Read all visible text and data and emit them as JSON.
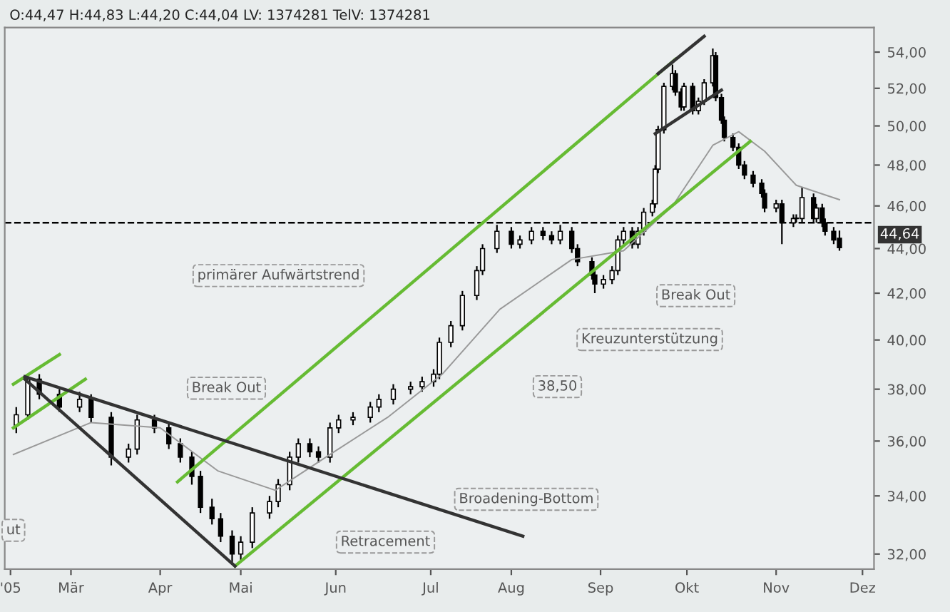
{
  "chart_data": {
    "type": "candlestick",
    "title": "O:44,47 H:44,83 L:44,20 C:44,04 LV: 1374281 TelV: 1374281",
    "log": "y",
    "grid": false,
    "x": [
      "2005-02-10",
      "2005-02-14",
      "2005-02-18",
      "2005-02-25",
      "2005-03-04",
      "2005-03-08",
      "2005-03-15",
      "2005-03-21",
      "2005-03-24",
      "2005-03-30",
      "2005-04-04",
      "2005-04-08",
      "2005-04-12",
      "2005-04-15",
      "2005-04-19",
      "2005-04-22",
      "2005-04-26",
      "2005-04-29",
      "2005-05-03",
      "2005-05-09",
      "2005-05-12",
      "2005-05-16",
      "2005-05-19",
      "2005-05-23",
      "2005-05-26",
      "2005-05-30",
      "2005-06-02",
      "2005-06-07",
      "2005-06-13",
      "2005-06-16",
      "2005-06-21",
      "2005-06-27",
      "2005-07-01",
      "2005-07-05",
      "2005-07-07",
      "2005-07-11",
      "2005-07-15",
      "2005-07-20",
      "2005-07-22",
      "2005-07-27",
      "2005-08-01",
      "2005-08-04",
      "2005-08-08",
      "2005-08-12",
      "2005-08-15",
      "2005-08-18",
      "2005-08-22",
      "2005-08-24",
      "2005-08-29",
      "2005-08-30",
      "2005-09-02",
      "2005-09-05",
      "2005-09-07",
      "2005-09-09",
      "2005-09-12",
      "2005-09-14",
      "2005-09-16",
      "2005-09-19",
      "2005-09-20",
      "2005-09-21",
      "2005-09-23",
      "2005-09-26",
      "2005-09-27",
      "2005-09-29",
      "2005-09-30",
      "2005-10-03",
      "2005-10-05",
      "2005-10-07",
      "2005-10-10",
      "2005-10-11",
      "2005-10-13",
      "2005-10-14",
      "2005-10-17",
      "2005-10-19",
      "2005-10-21",
      "2005-10-24",
      "2005-10-27",
      "2005-10-28",
      "2005-11-01",
      "2005-11-03",
      "2005-11-07",
      "2005-11-08",
      "2005-11-10",
      "2005-11-14",
      "2005-11-15",
      "2005-11-17",
      "2005-11-18",
      "2005-11-21",
      "2005-11-23"
    ],
    "ohlc": [
      [
        36.6,
        37.3,
        36.3,
        37.0
      ],
      [
        37.0,
        38.6,
        36.8,
        38.4
      ],
      [
        38.4,
        38.6,
        37.6,
        37.8
      ],
      [
        37.8,
        38.0,
        37.1,
        37.3
      ],
      [
        37.3,
        37.9,
        37.1,
        37.6
      ],
      [
        37.6,
        37.8,
        36.7,
        36.9
      ],
      [
        36.9,
        37.1,
        35.1,
        35.4
      ],
      [
        35.4,
        35.9,
        35.2,
        35.7
      ],
      [
        35.7,
        37.0,
        35.5,
        36.8
      ],
      [
        36.8,
        37.0,
        36.3,
        36.5
      ],
      [
        36.5,
        36.7,
        35.7,
        35.9
      ],
      [
        35.9,
        36.1,
        35.2,
        35.4
      ],
      [
        35.4,
        35.6,
        34.4,
        34.7
      ],
      [
        34.7,
        34.9,
        33.4,
        33.6
      ],
      [
        33.6,
        33.9,
        33.0,
        33.2
      ],
      [
        33.2,
        33.4,
        32.4,
        32.6
      ],
      [
        32.6,
        32.8,
        31.7,
        32.0
      ],
      [
        32.0,
        32.6,
        31.8,
        32.4
      ],
      [
        32.4,
        33.6,
        32.2,
        33.4
      ],
      [
        33.4,
        34.0,
        33.2,
        33.8
      ],
      [
        33.8,
        34.6,
        33.6,
        34.4
      ],
      [
        34.4,
        35.6,
        34.2,
        35.4
      ],
      [
        35.4,
        36.1,
        35.2,
        35.9
      ],
      [
        35.9,
        36.1,
        35.4,
        35.6
      ],
      [
        35.6,
        35.8,
        35.2,
        35.4
      ],
      [
        35.4,
        36.7,
        35.2,
        36.5
      ],
      [
        36.5,
        37.0,
        36.3,
        36.8
      ],
      [
        36.8,
        37.1,
        36.6,
        36.9
      ],
      [
        36.9,
        37.5,
        36.7,
        37.3
      ],
      [
        37.3,
        37.8,
        37.1,
        37.6
      ],
      [
        37.6,
        38.2,
        37.4,
        38.0
      ],
      [
        38.0,
        38.3,
        37.8,
        38.1
      ],
      [
        38.1,
        38.5,
        37.9,
        38.3
      ],
      [
        38.3,
        38.8,
        38.1,
        38.6
      ],
      [
        38.6,
        40.1,
        38.4,
        39.9
      ],
      [
        39.9,
        40.8,
        39.7,
        40.6
      ],
      [
        40.6,
        42.1,
        40.4,
        41.9
      ],
      [
        41.9,
        43.2,
        41.7,
        43.0
      ],
      [
        43.0,
        44.2,
        42.8,
        44.0
      ],
      [
        44.0,
        45.1,
        43.8,
        44.8
      ],
      [
        44.8,
        45.0,
        44.0,
        44.2
      ],
      [
        44.2,
        44.6,
        44.0,
        44.4
      ],
      [
        44.4,
        45.0,
        44.2,
        44.8
      ],
      [
        44.8,
        45.0,
        44.4,
        44.6
      ],
      [
        44.6,
        44.8,
        44.2,
        44.4
      ],
      [
        44.4,
        45.1,
        44.2,
        44.8
      ],
      [
        44.8,
        45.0,
        43.8,
        44.0
      ],
      [
        44.0,
        44.2,
        43.2,
        43.4
      ],
      [
        43.4,
        43.6,
        42.6,
        42.8
      ],
      [
        42.8,
        43.0,
        42.0,
        42.4
      ],
      [
        42.4,
        42.8,
        42.2,
        42.6
      ],
      [
        42.6,
        43.2,
        42.4,
        43.0
      ],
      [
        43.0,
        44.6,
        42.8,
        44.4
      ],
      [
        44.4,
        45.0,
        44.2,
        44.8
      ],
      [
        44.8,
        45.0,
        44.0,
        44.2
      ],
      [
        44.2,
        45.0,
        44.0,
        44.8
      ],
      [
        44.8,
        45.9,
        44.6,
        45.7
      ],
      [
        45.7,
        46.3,
        45.5,
        46.1
      ],
      [
        46.1,
        48.0,
        45.9,
        47.8
      ],
      [
        47.8,
        50.0,
        47.6,
        49.8
      ],
      [
        49.8,
        52.3,
        49.6,
        52.1
      ],
      [
        52.1,
        53.3,
        51.9,
        52.8
      ],
      [
        52.8,
        53.0,
        51.6,
        51.8
      ],
      [
        51.8,
        52.0,
        50.8,
        51.0
      ],
      [
        51.0,
        52.3,
        50.8,
        52.1
      ],
      [
        52.1,
        52.3,
        50.6,
        50.8
      ],
      [
        50.8,
        51.5,
        50.6,
        51.3
      ],
      [
        51.3,
        52.5,
        51.1,
        52.3
      ],
      [
        52.3,
        54.2,
        52.1,
        53.8
      ],
      [
        53.8,
        54.0,
        51.3,
        51.5
      ],
      [
        51.5,
        51.7,
        50.1,
        50.3
      ],
      [
        50.3,
        50.5,
        49.2,
        49.4
      ],
      [
        49.4,
        49.6,
        48.7,
        48.9
      ],
      [
        48.9,
        49.1,
        47.8,
        48.0
      ],
      [
        48.0,
        48.2,
        47.3,
        47.5
      ],
      [
        47.5,
        47.7,
        46.9,
        47.1
      ],
      [
        47.1,
        47.3,
        46.4,
        46.6
      ],
      [
        46.6,
        46.8,
        45.7,
        45.9
      ],
      [
        45.9,
        46.3,
        45.7,
        46.1
      ],
      [
        46.1,
        46.3,
        44.2,
        45.2
      ],
      [
        45.2,
        45.6,
        45.0,
        45.4
      ],
      [
        45.4,
        45.6,
        45.2,
        45.4
      ],
      [
        45.4,
        46.9,
        45.2,
        46.4
      ],
      [
        46.4,
        46.6,
        45.2,
        45.4
      ],
      [
        45.4,
        46.1,
        45.2,
        45.9
      ],
      [
        45.9,
        46.1,
        45.0,
        45.2
      ],
      [
        45.2,
        45.4,
        44.6,
        44.8
      ],
      [
        44.8,
        45.0,
        44.2,
        44.4
      ],
      [
        44.47,
        44.83,
        43.9,
        44.04
      ]
    ],
    "series": [
      {
        "type": "line",
        "color": "#999999",
        "x": [
          "2005-02-09",
          "2005-03-08",
          "2005-04-01",
          "2005-04-21",
          "2005-05-11",
          "2005-05-30",
          "2005-06-19",
          "2005-07-08",
          "2005-07-28",
          "2005-08-22",
          "2005-09-09",
          "2005-09-26",
          "2005-10-10",
          "2005-10-19",
          "2005-10-28",
          "2005-11-08",
          "2005-11-23"
        ],
        "values": [
          35.5,
          36.7,
          36.5,
          34.9,
          34.2,
          35.5,
          36.9,
          38.6,
          41.3,
          43.5,
          43.9,
          46.0,
          49.0,
          49.7,
          48.7,
          47.0,
          46.3
        ]
      },
      {
        "type": "line",
        "color": "#66bb33",
        "x": [
          "2005-04-07",
          "2005-09-27"
        ],
        "values": [
          34.5,
          53.6
        ]
      },
      {
        "type": "line",
        "color": "#66bb33",
        "x": [
          "2005-04-27",
          "2005-10-23"
        ],
        "values": [
          31.6,
          49.2
        ]
      },
      {
        "type": "line",
        "color": "#66bb33",
        "x": [
          "2005-02-09",
          "2005-02-25"
        ],
        "values": [
          38.2,
          39.4
        ]
      },
      {
        "type": "line",
        "color": "#66bb33",
        "x": [
          "2005-02-09",
          "2005-03-06"
        ],
        "values": [
          36.5,
          38.4
        ]
      },
      {
        "type": "line",
        "color": "#333333",
        "x": [
          "2005-02-13",
          "2005-08-05"
        ],
        "values": [
          38.5,
          32.6
        ]
      },
      {
        "type": "line",
        "color": "#333333",
        "x": [
          "2005-02-13",
          "2005-04-27"
        ],
        "values": [
          38.4,
          31.6
        ]
      },
      {
        "type": "line",
        "color": "#333333",
        "x": [
          "2005-09-20",
          "2005-10-13"
        ],
        "values": [
          49.6,
          51.9
        ]
      },
      {
        "type": "line",
        "color": "#333333",
        "x": [
          "2005-09-21",
          "2005-10-07"
        ],
        "values": [
          52.8,
          54.9
        ]
      }
    ],
    "ref_lines": [
      {
        "axis": "y",
        "value": 45.2,
        "color": "#000000",
        "line_style": "dashed"
      }
    ],
    "annotations": [
      "primärer Aufwärtstrend",
      "Break Out",
      "Retracement",
      "Broadening-Bottom",
      "Kreuzunterstützung",
      "Break Out",
      {
        "text": "38,50",
        "x": "2005-08-17",
        "y": 38.1
      },
      {
        "text": "ut",
        "x": "2005-02-09",
        "y": 32.8
      },
      {
        "text": "44,64",
        "y": 44.64
      }
    ],
    "xlim": [
      "2005-02-06",
      "2005-12-05"
    ],
    "xticks": [
      {
        "value": "2005-02-08",
        "label": "'05"
      },
      {
        "value": "2005-03-01",
        "label": "Mär"
      },
      {
        "value": "2005-04-01",
        "label": "Apr"
      },
      {
        "value": "2005-04-29",
        "label": "Mai"
      },
      {
        "value": "2005-06-01",
        "label": "Jun"
      },
      {
        "value": "2005-07-04",
        "label": "Jul"
      },
      {
        "value": "2005-08-01",
        "label": "Aug"
      },
      {
        "value": "2005-09-01",
        "label": "Sep"
      },
      {
        "value": "2005-10-01",
        "label": "Okt"
      },
      {
        "value": "2005-11-01",
        "label": "Nov"
      },
      {
        "value": "2005-12-01",
        "label": "Dez"
      }
    ],
    "ylim": [
      31.5,
      55.4
    ],
    "yticks": [
      {
        "value": 32,
        "label": "32,00"
      },
      {
        "value": 34,
        "label": "34,00"
      },
      {
        "value": 36,
        "label": "36,00"
      },
      {
        "value": 38,
        "label": "38,00"
      },
      {
        "value": 40,
        "label": "40,00"
      },
      {
        "value": 42,
        "label": "42,00"
      },
      {
        "value": 44,
        "label": "44,00"
      },
      {
        "value": 46,
        "label": "46,00"
      },
      {
        "value": 48,
        "label": "48,00"
      },
      {
        "value": 50,
        "label": "50,00"
      },
      {
        "value": 52,
        "label": "52,00"
      },
      {
        "value": 54,
        "label": "54,00"
      }
    ]
  }
}
